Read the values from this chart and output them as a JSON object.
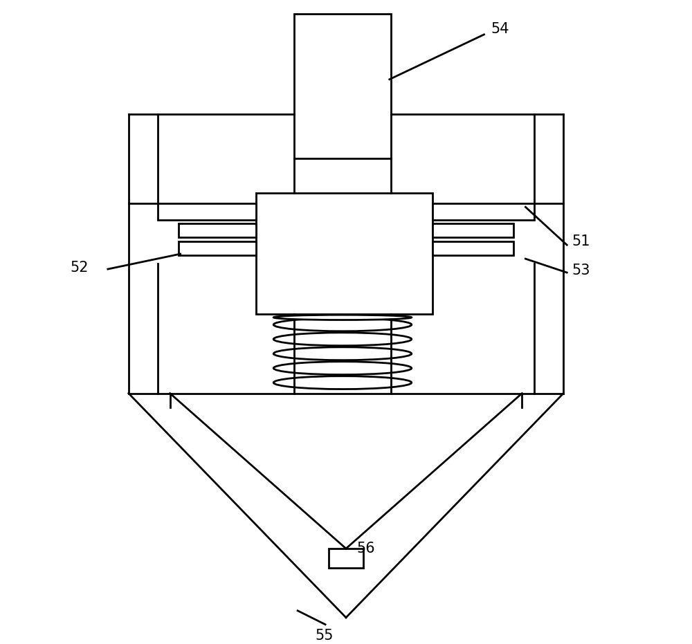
{
  "bg_color": "#ffffff",
  "line_color": "#000000",
  "lw": 2.0,
  "label_fontsize": 15,
  "fig_w": 10.0,
  "fig_h": 9.31
}
